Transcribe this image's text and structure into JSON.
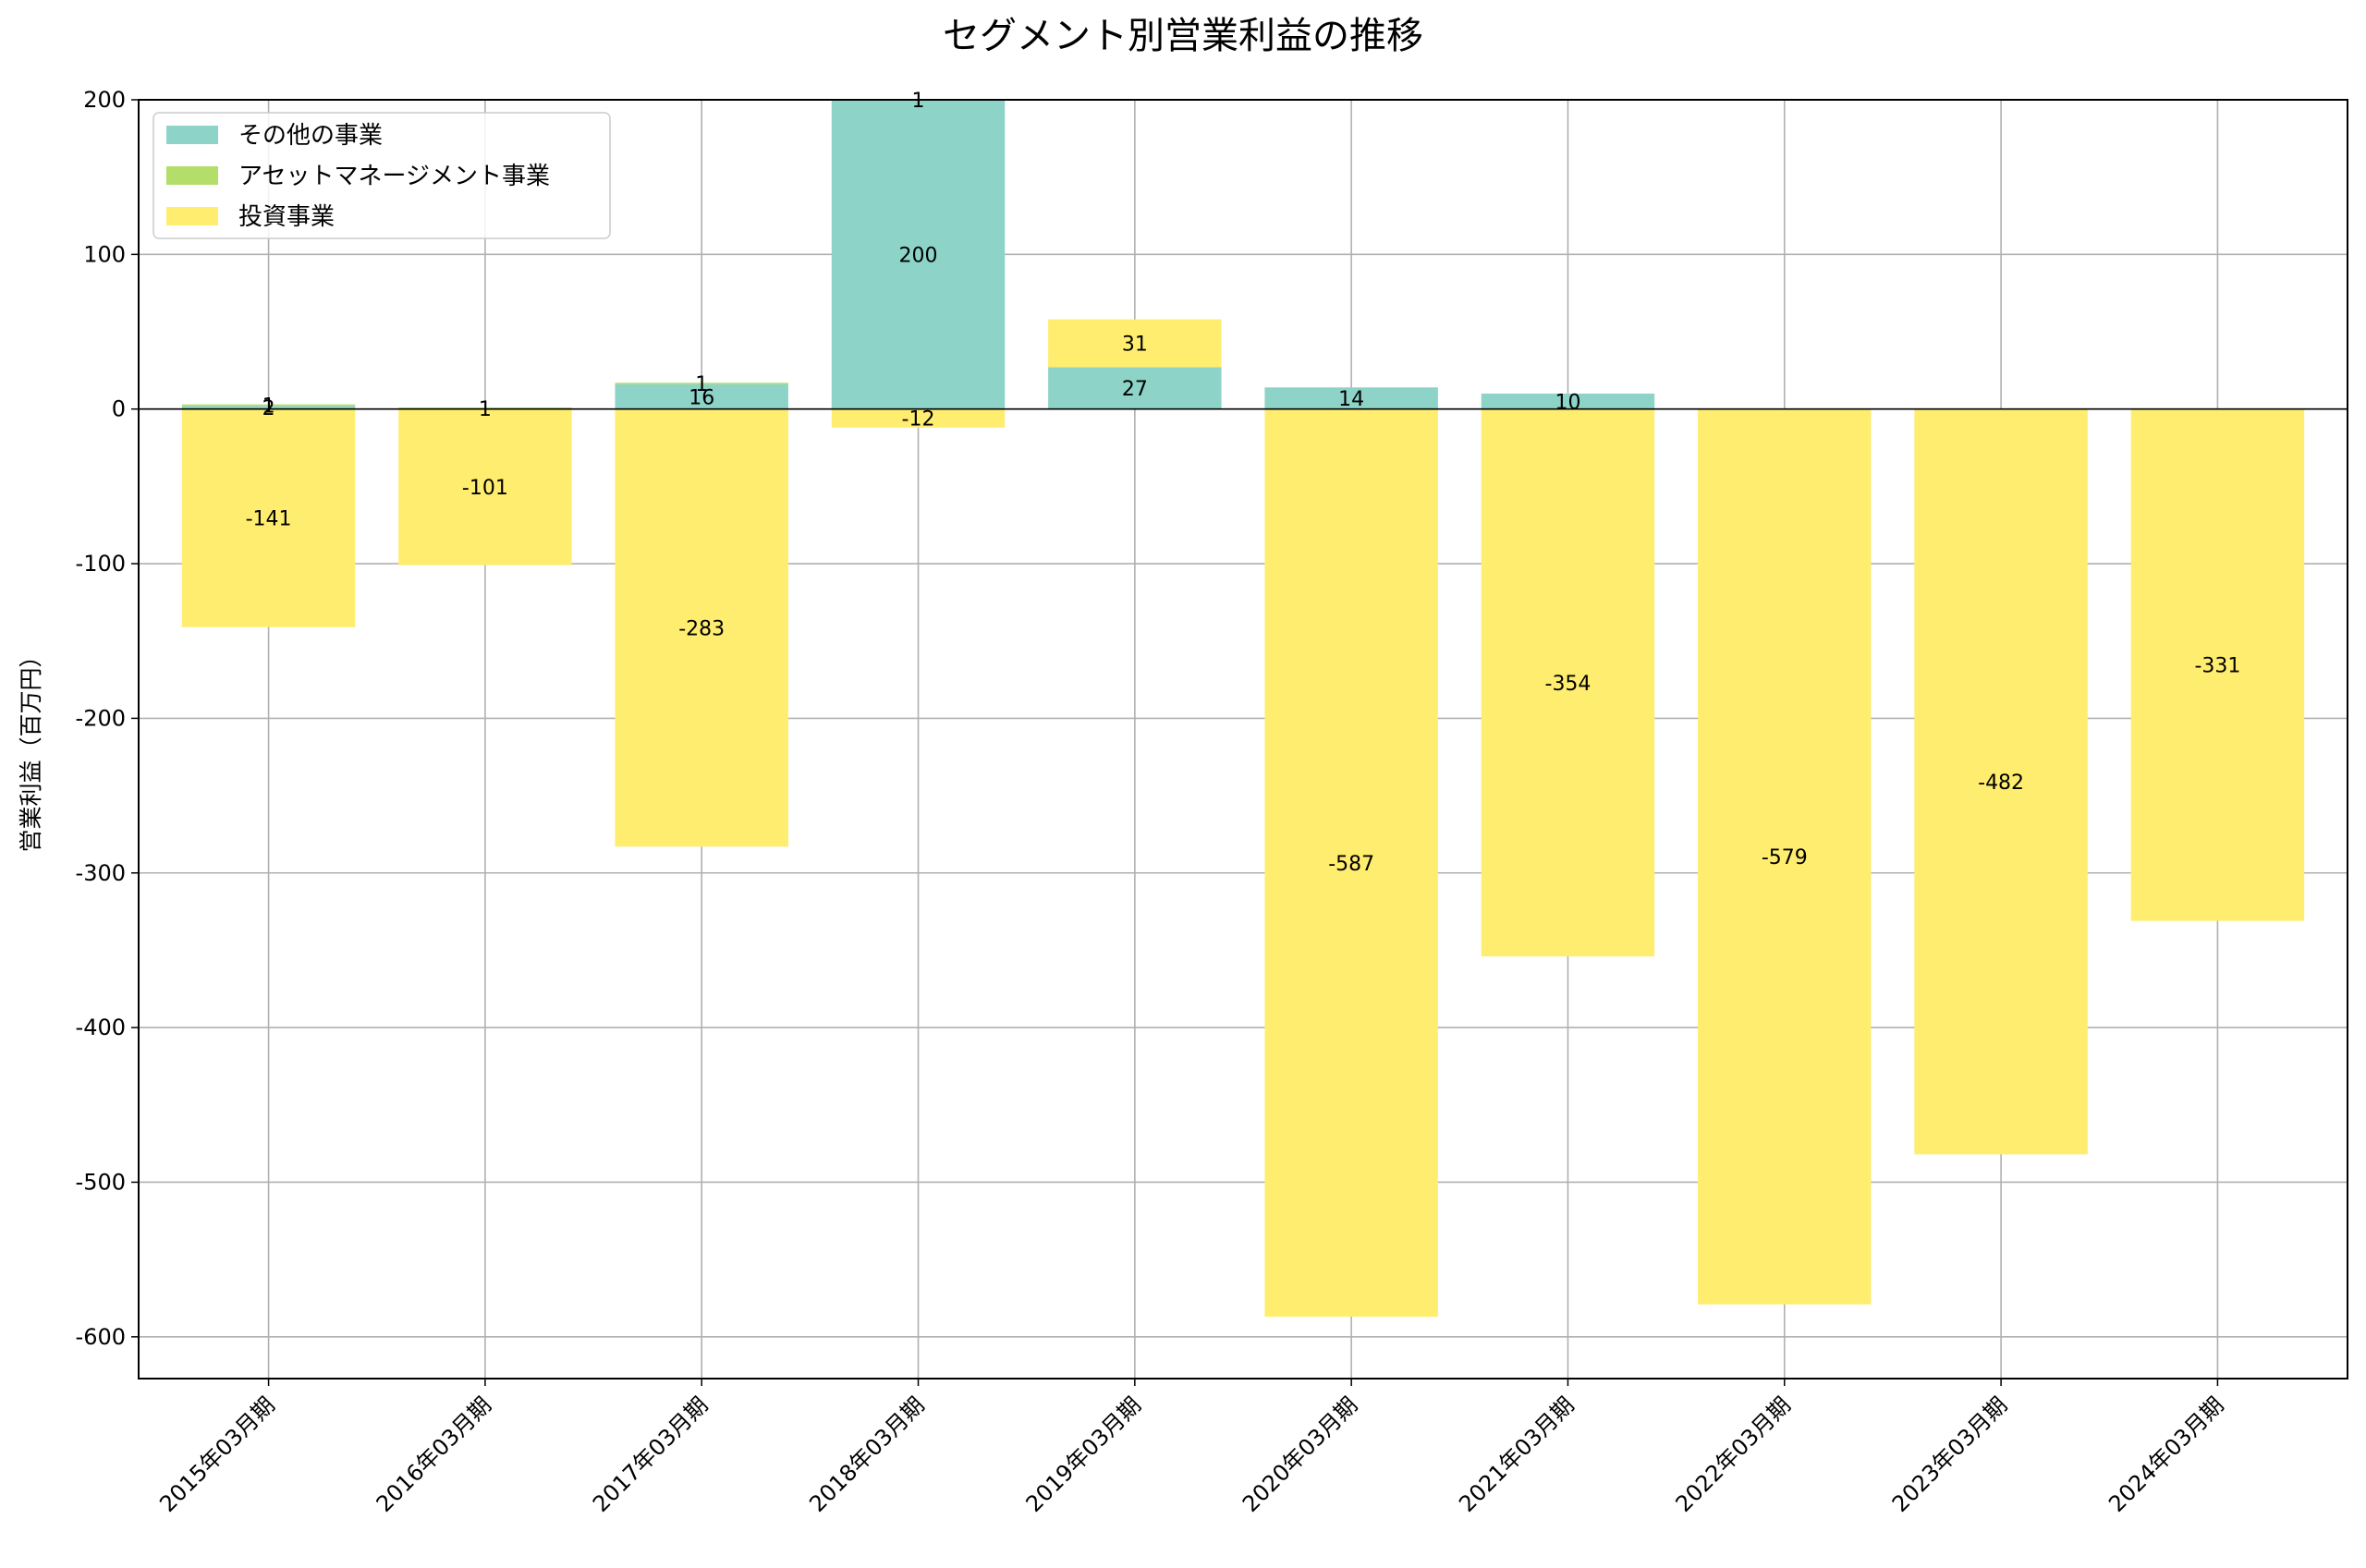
{
  "chart_data": {
    "type": "bar",
    "stacked": true,
    "title": "セグメント別営業利益の推移",
    "xlabel": "",
    "ylabel": "営業利益（百万円）",
    "ylim": [
      -627,
      200
    ],
    "yticks": [
      200,
      100,
      0,
      -100,
      -200,
      -300,
      -400,
      -500,
      -600
    ],
    "ytick_labels": [
      "200",
      "100",
      "0",
      "-100",
      "-200",
      "-300",
      "-400",
      "-500",
      "-600"
    ],
    "grid": true,
    "legend_position": "top-left",
    "categories": [
      "2015年03月期",
      "2016年03月期",
      "2017年03月期",
      "2018年03月期",
      "2019年03月期",
      "2020年03月期",
      "2021年03月期",
      "2022年03月期",
      "2023年03月期",
      "2024年03月期"
    ],
    "series": [
      {
        "name": "その他の事業",
        "color": "#8dd3c7",
        "values": [
          2,
          0,
          16,
          200,
          27,
          14,
          10,
          0,
          0,
          0
        ]
      },
      {
        "name": "アセットマネージメント事業",
        "color": "#b3de69",
        "values": [
          1,
          1,
          1,
          1,
          0,
          0,
          0,
          0,
          0,
          0
        ]
      },
      {
        "name": "投資事業",
        "color": "#ffed6f",
        "values": [
          -141,
          -101,
          -283,
          -12,
          31,
          -587,
          -354,
          -579,
          -482,
          -331
        ]
      }
    ]
  }
}
